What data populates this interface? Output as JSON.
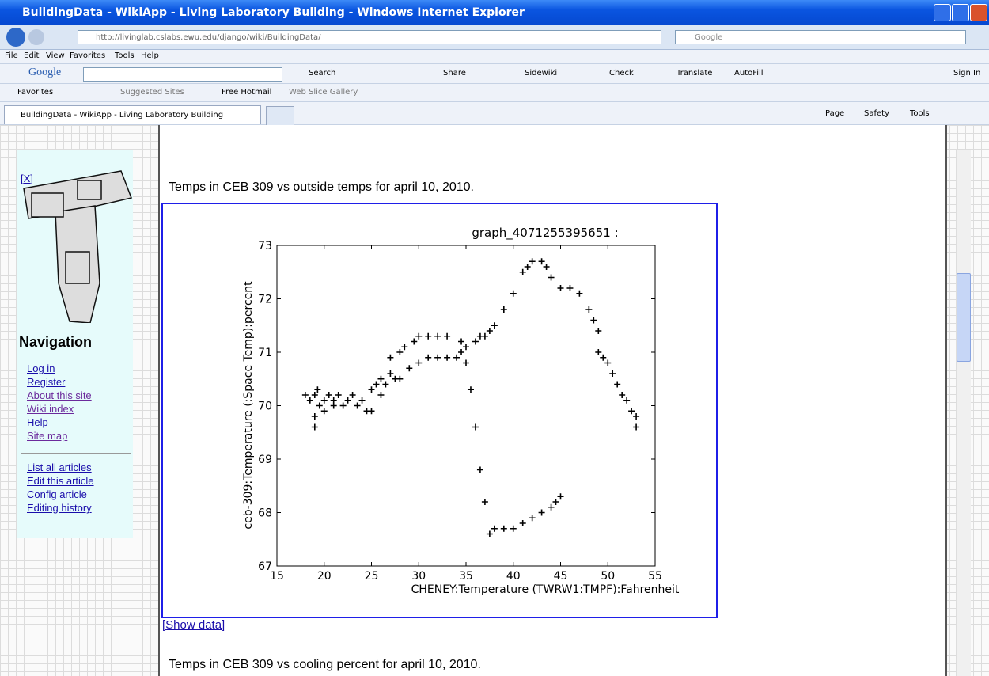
{
  "window": {
    "title": "BuildingData - WikiApp - Living Laboratory Building - Windows Internet Explorer",
    "address": "http://livinglab.cslabs.ewu.edu/django/wiki/BuildingData/",
    "search_placeholder": "Google"
  },
  "menu": [
    "File",
    "Edit",
    "View",
    "Favorites",
    "Tools",
    "Help"
  ],
  "google_toolbar": {
    "logo": "Google",
    "buttons": [
      "Search",
      "Share",
      "Sidewiki",
      "Check",
      "Translate",
      "AutoFill",
      "Sign In"
    ]
  },
  "favorites_bar": [
    "Favorites",
    "Suggested Sites",
    "Free Hotmail",
    "Web Slice Gallery"
  ],
  "tab": "BuildingData - WikiApp - Living Laboratory Building",
  "command_bar": [
    "Page",
    "Safety",
    "Tools"
  ],
  "sidebar": {
    "close": "[X]",
    "heading": "Navigation",
    "links": [
      "Log in",
      "Register",
      "About this site",
      "Wiki index",
      "Help",
      "Site map"
    ],
    "article_links": [
      "List all articles",
      "Edit this article",
      "Config article",
      "Editing history"
    ]
  },
  "content": {
    "caption": "Temps in CEB 309 vs outside temps for april 10, 2010.",
    "show_data": "[Show data]",
    "next_caption": "Temps in CEB 309 vs cooling percent for april 10, 2010."
  },
  "chart_data": {
    "type": "scatter",
    "title": "graph_4071255395651 :",
    "x_label": "CHENEY:Temperature (TWRW1:TMPF):Fahrenheit",
    "y_label": "ceb-309:Temperature (:Space Temp):percent",
    "color": "#000000",
    "marker": "+",
    "x": [
      18,
      18.5,
      19,
      19,
      19,
      19.3,
      19.5,
      20,
      20,
      20.5,
      21,
      21,
      21.5,
      22,
      22.5,
      23,
      23.5,
      24,
      24.5,
      25,
      25,
      25.5,
      26,
      26,
      26.5,
      27,
      27,
      27.5,
      28,
      28,
      28.5,
      29,
      29.5,
      30,
      30,
      31,
      31,
      32,
      32,
      33,
      33,
      34,
      34.5,
      34.5,
      35,
      35,
      35.5,
      36,
      36.5,
      37,
      37.5,
      38,
      39,
      40,
      41,
      42,
      43,
      44,
      44.5,
      45,
      36,
      36.5,
      37,
      37.5,
      38,
      39,
      40,
      41,
      41.5,
      42,
      43,
      43.5,
      44,
      45,
      46,
      47,
      48,
      48.5,
      49,
      49,
      49.5,
      50,
      50.5,
      51,
      51.5,
      52,
      52.5,
      53,
      53
    ],
    "values": [
      70.2,
      70.1,
      70.2,
      69.8,
      69.6,
      70.3,
      70,
      70.1,
      69.9,
      70.2,
      70.1,
      70,
      70.2,
      70,
      70.1,
      70.2,
      70,
      70.1,
      69.9,
      70.3,
      69.9,
      70.4,
      70.2,
      70.5,
      70.4,
      70.6,
      70.9,
      70.5,
      71,
      70.5,
      71.1,
      70.7,
      71.2,
      70.8,
      71.3,
      71.3,
      70.9,
      71.3,
      70.9,
      71.3,
      70.9,
      70.9,
      71,
      71.2,
      71.1,
      70.8,
      70.3,
      69.6,
      68.8,
      68.2,
      67.6,
      67.7,
      67.7,
      67.7,
      67.8,
      67.9,
      68,
      68.1,
      68.2,
      68.3,
      71.2,
      71.3,
      71.3,
      71.4,
      71.5,
      71.8,
      72.1,
      72.5,
      72.6,
      72.7,
      72.7,
      72.6,
      72.4,
      72.2,
      72.2,
      72.1,
      71.8,
      71.6,
      71.4,
      71,
      70.9,
      70.8,
      70.6,
      70.4,
      70.2,
      70.1,
      69.9,
      69.8,
      69.6
    ],
    "xlim": [
      15,
      55
    ],
    "ylim": [
      67,
      73
    ],
    "xticks": [
      15,
      20,
      25,
      30,
      35,
      40,
      45,
      50,
      55
    ],
    "yticks": [
      67,
      68,
      69,
      70,
      71,
      72,
      73
    ]
  }
}
